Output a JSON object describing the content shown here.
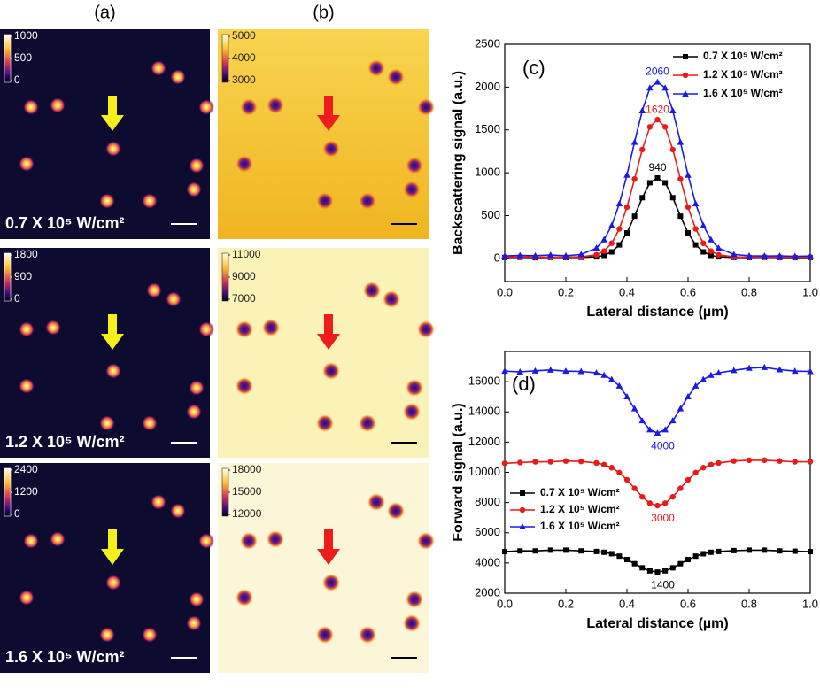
{
  "image_columns": [
    {
      "label": "(a)",
      "panels": [
        {
          "intensity": "0.7 X 10⁵ W/cm²",
          "colorbar_ticks": [
            1000,
            500,
            0
          ]
        },
        {
          "intensity": "1.2 X 10⁵ W/cm²",
          "colorbar_ticks": [
            1800,
            900,
            0
          ]
        },
        {
          "intensity": "1.6 X 10⁵ W/cm²",
          "colorbar_ticks": [
            2400,
            1200,
            0
          ]
        }
      ]
    },
    {
      "label": "(b)",
      "panels": [
        {
          "colorbar_ticks": [
            5000,
            4000,
            3000
          ]
        },
        {
          "colorbar_ticks": [
            11000,
            9000,
            7000
          ]
        },
        {
          "colorbar_ticks": [
            18000,
            15000,
            12000
          ]
        }
      ]
    }
  ],
  "chart_data": [
    {
      "type": "line",
      "label": "(c)",
      "xlabel": "Lateral distance (µm)",
      "ylabel": "Backscattering signal (a.u.)",
      "x": [
        0,
        0.05,
        0.1,
        0.15,
        0.2,
        0.25,
        0.3,
        0.325,
        0.35,
        0.375,
        0.4,
        0.425,
        0.45,
        0.475,
        0.5,
        0.525,
        0.55,
        0.575,
        0.6,
        0.625,
        0.65,
        0.675,
        0.7,
        0.75,
        0.8,
        0.85,
        0.9,
        0.95,
        1
      ],
      "xlim": [
        0,
        1
      ],
      "xticks": [
        {
          "value": 0,
          "label": "0.0"
        },
        0.2,
        0.4,
        0.6,
        0.8,
        {
          "value": 1,
          "label": "1.0"
        }
      ],
      "ylim": [
        -270,
        2500
      ],
      "yticks": [
        0,
        500,
        1000,
        1500,
        2000,
        2500
      ],
      "legend": "upper right",
      "series": [
        {
          "name": "0.7 X 10⁵ W/cm²",
          "color": "#000000",
          "marker": "square",
          "annotation": "940",
          "values": [
            10,
            12,
            8,
            11,
            10,
            12,
            18,
            35,
            76,
            158,
            298,
            493,
            709,
            883,
            940,
            883,
            709,
            493,
            298,
            158,
            76,
            35,
            18,
            11,
            9,
            12,
            10,
            8,
            10
          ]
        },
        {
          "name": "1.2 X 10⁵ W/cm²",
          "color": "#e81a1a",
          "marker": "circle",
          "annotation": "1620",
          "values": [
            15,
            18,
            14,
            16,
            15,
            18,
            42,
            86,
            177,
            345,
            598,
            927,
            1271,
            1535,
            1620,
            1535,
            1271,
            927,
            598,
            345,
            177,
            86,
            42,
            17,
            14,
            16,
            15,
            13,
            15
          ]
        },
        {
          "name": "1.6 X 10⁵ W/cm²",
          "color": "#1a1ae8",
          "marker": "triangle",
          "annotation": "2060",
          "values": [
            30,
            35,
            32,
            40,
            31,
            46,
            121,
            218,
            384,
            638,
            973,
            1357,
            1725,
            1991,
            2060,
            1991,
            1725,
            1357,
            973,
            638,
            384,
            218,
            121,
            46,
            31,
            28,
            30,
            25,
            28
          ]
        }
      ]
    },
    {
      "type": "line",
      "label": "(d)",
      "xlabel": "Lateral distance (µm)",
      "ylabel": "Forward signal (a.u.)",
      "x": [
        0,
        0.05,
        0.1,
        0.15,
        0.2,
        0.25,
        0.3,
        0.325,
        0.35,
        0.375,
        0.4,
        0.425,
        0.45,
        0.475,
        0.5,
        0.525,
        0.55,
        0.575,
        0.6,
        0.625,
        0.65,
        0.675,
        0.7,
        0.75,
        0.8,
        0.85,
        0.9,
        0.95,
        1
      ],
      "xlim": [
        0,
        1
      ],
      "xticks": [
        {
          "value": 0,
          "label": "0.0"
        },
        0.2,
        0.4,
        0.6,
        0.8,
        {
          "value": 1,
          "label": "1.0"
        }
      ],
      "ylim": [
        2000,
        18000
      ],
      "yticks": [
        2000,
        4000,
        6000,
        8000,
        10000,
        12000,
        14000,
        16000
      ],
      "legend": "center left",
      "series": [
        {
          "name": "0.7 X 10⁵ W/cm²",
          "color": "#000000",
          "marker": "square",
          "annotation": "1400",
          "values": [
            4750,
            4800,
            4800,
            4850,
            4850,
            4800,
            4761,
            4708,
            4611,
            4451,
            4225,
            3950,
            3679,
            3476,
            3400,
            3476,
            3679,
            3950,
            4225,
            4451,
            4611,
            4708,
            4761,
            4820,
            4850,
            4850,
            4800,
            4780,
            4750
          ]
        },
        {
          "name": "1.2 X 10⁵ W/cm²",
          "color": "#e81a1a",
          "marker": "circle",
          "annotation": "3000",
          "values": [
            10600,
            10650,
            10700,
            10700,
            10750,
            10720,
            10619,
            10509,
            10308,
            9978,
            9508,
            8940,
            8377,
            7957,
            7800,
            7957,
            8377,
            8940,
            9508,
            9978,
            10308,
            10509,
            10619,
            10750,
            10800,
            10800,
            10750,
            10700,
            10700
          ]
        },
        {
          "name": "1.6 X 10⁵ W/cm²",
          "color": "#1a1ae8",
          "marker": "triangle",
          "annotation": "4000",
          "values": [
            16700,
            16650,
            16720,
            16780,
            16700,
            16680,
            16585,
            16430,
            16150,
            15720,
            15010,
            14210,
            13420,
            12820,
            12600,
            12820,
            13420,
            14210,
            15010,
            15720,
            16150,
            16430,
            16585,
            16750,
            16900,
            16950,
            16800,
            16700,
            16680
          ]
        }
      ]
    }
  ]
}
